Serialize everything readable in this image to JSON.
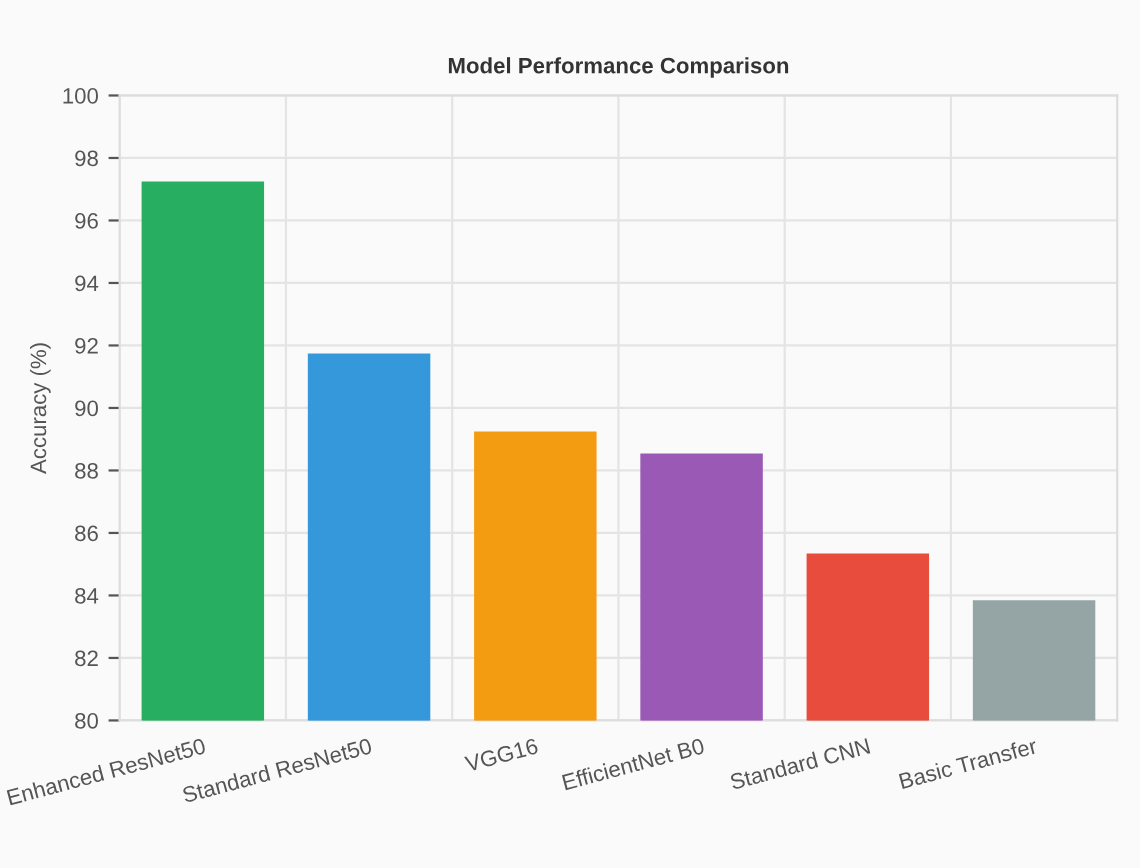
{
  "chart_data": {
    "type": "bar",
    "title": "Model Performance Comparison",
    "ylabel": "Accuracy (%)",
    "categories": [
      "Enhanced ResNet50",
      "Standard ResNet50",
      "VGG16",
      "EfficientNet B0",
      "Standard CNN",
      "Basic Transfer"
    ],
    "values": [
      97.2,
      91.7,
      89.2,
      88.5,
      85.3,
      83.8
    ],
    "colors": [
      "#27ae60",
      "#3498db",
      "#f39c12",
      "#9b59b6",
      "#e74c3c",
      "#95a5a6"
    ],
    "ylim": [
      80,
      100
    ],
    "yticks": [
      80,
      82,
      84,
      86,
      88,
      90,
      92,
      94,
      96,
      98,
      100
    ],
    "grid": true,
    "legend": false
  }
}
